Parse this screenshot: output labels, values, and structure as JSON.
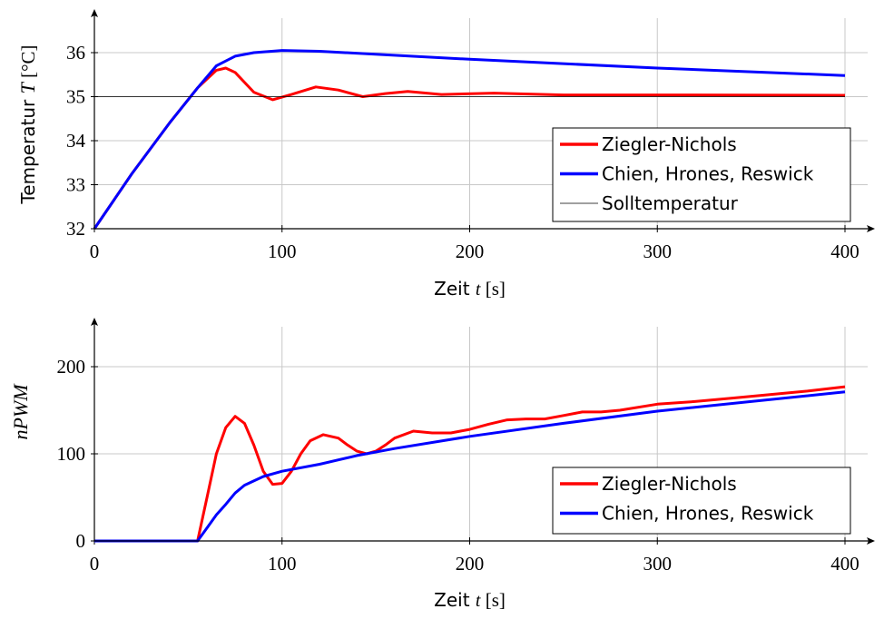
{
  "chart_data": [
    {
      "type": "line",
      "xlabel": "Zeit t [s]",
      "ylabel": "Temperatur T [°C]",
      "xlim": [
        0,
        400
      ],
      "ylim": [
        32,
        37
      ],
      "xticks": [
        0,
        100,
        200,
        300,
        400
      ],
      "yticks": [
        32,
        33,
        34,
        35,
        36
      ],
      "grid": true,
      "legend_position": "bottom-right",
      "series": [
        {
          "name": "Ziegler-Nichols",
          "color": "#ff0000",
          "x": [
            0,
            20,
            40,
            55,
            65,
            70,
            75,
            85,
            95,
            105,
            118,
            130,
            143,
            155,
            167,
            185,
            213,
            250,
            300,
            400
          ],
          "y": [
            32,
            33.25,
            34.4,
            35.2,
            35.6,
            35.65,
            35.55,
            35.1,
            34.93,
            35.05,
            35.22,
            35.15,
            35.0,
            35.07,
            35.12,
            35.05,
            35.08,
            35.04,
            35.04,
            35.03
          ]
        },
        {
          "name": "Chien, Hrones, Reswick",
          "color": "#0000ff",
          "x": [
            0,
            20,
            40,
            55,
            65,
            75,
            85,
            100,
            120,
            200,
            300,
            400
          ],
          "y": [
            32,
            33.25,
            34.4,
            35.2,
            35.7,
            35.92,
            36.0,
            36.05,
            36.03,
            35.85,
            35.65,
            35.48
          ]
        },
        {
          "name": "Solltemperatur",
          "color": "#000000",
          "x": [
            0,
            400
          ],
          "y": [
            35,
            35
          ]
        }
      ]
    },
    {
      "type": "line",
      "xlabel": "Zeit t [s]",
      "ylabel": "nPWM",
      "xlim": [
        0,
        400
      ],
      "ylim": [
        0,
        250
      ],
      "xticks": [
        0,
        100,
        200,
        300,
        400
      ],
      "yticks": [
        0,
        100,
        200
      ],
      "grid": true,
      "legend_position": "bottom-right",
      "series": [
        {
          "name": "Ziegler-Nichols",
          "color": "#ff0000",
          "x": [
            0,
            55,
            60,
            65,
            70,
            75,
            80,
            85,
            90,
            95,
            100,
            105,
            110,
            115,
            122,
            130,
            135,
            140,
            145,
            150,
            155,
            160,
            170,
            180,
            190,
            200,
            210,
            220,
            230,
            240,
            250,
            260,
            270,
            280,
            300,
            320,
            340,
            360,
            380,
            400
          ],
          "y": [
            0,
            0,
            50,
            100,
            130,
            143,
            135,
            110,
            80,
            65,
            66,
            80,
            100,
            115,
            122,
            118,
            110,
            103,
            100,
            103,
            110,
            118,
            126,
            124,
            124,
            128,
            134,
            139,
            140,
            140,
            144,
            148,
            148,
            150,
            157,
            160,
            164,
            168,
            172,
            177
          ]
        },
        {
          "name": "Chien, Hrones, Reswick",
          "color": "#0000ff",
          "x": [
            0,
            55,
            60,
            65,
            70,
            75,
            80,
            90,
            100,
            120,
            140,
            160,
            200,
            250,
            300,
            350,
            400
          ],
          "y": [
            0,
            0,
            15,
            30,
            42,
            55,
            64,
            74,
            80,
            88,
            98,
            106,
            120,
            135,
            149,
            160,
            171
          ]
        }
      ]
    }
  ]
}
